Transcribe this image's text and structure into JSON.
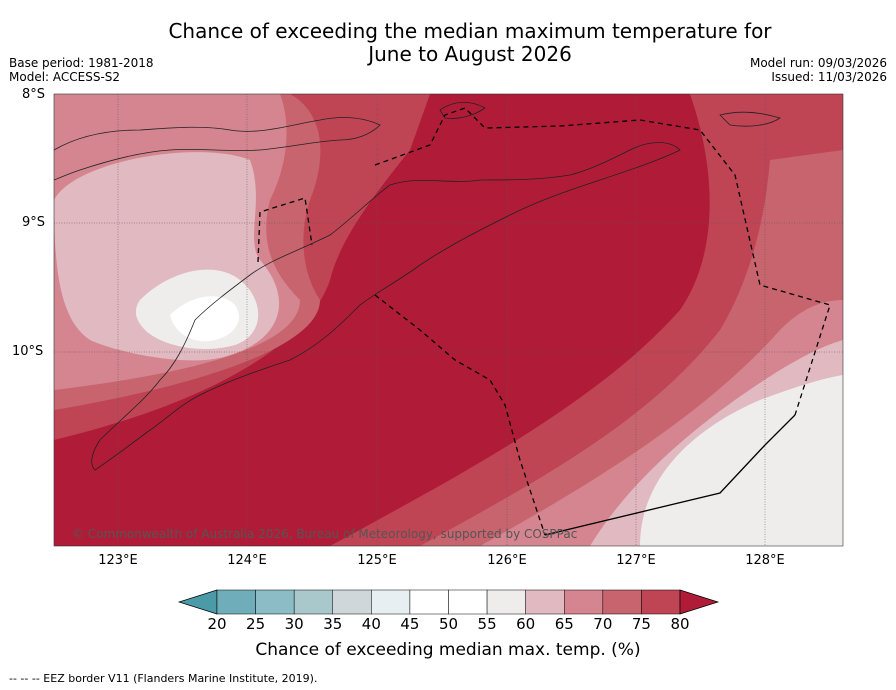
{
  "title_line1": "Chance of exceeding the median maximum temperature for",
  "title_line2": "June to August 2026",
  "base_period": "Base period: 1981-2018",
  "model": "Model: ACCESS-S2",
  "model_run": "Model run: 09/03/2026",
  "issued": "Issued: 11/03/2026",
  "lat_labels": [
    "8°S",
    "9°S",
    "10°S"
  ],
  "lon_labels": [
    "123°E",
    "124°E",
    "125°E",
    "126°E",
    "127°E",
    "128°E"
  ],
  "copyright": "© Commonwealth of Australia 2026, Bureau of Meteorology, supported by COSPPac",
  "colorbar": {
    "label": "Chance of exceeding median max. temp. (%)",
    "ticks": [
      "20",
      "25",
      "30",
      "35",
      "40",
      "45",
      "50",
      "55",
      "60",
      "65",
      "70",
      "75",
      "80"
    ],
    "colors": [
      "#4a9aa8",
      "#6fadbb",
      "#8cbcc6",
      "#a8c8cc",
      "#cfd7da",
      "#e8eff2",
      "#ffffff",
      "#ffffff",
      "#efedec",
      "#e1b9c1",
      "#d4858f",
      "#c8646e",
      "#bf4555",
      "#b01c38"
    ]
  },
  "legend_note": "--  --  -- EEZ border V11 (Flanders Marine Institute, 2019)."
}
